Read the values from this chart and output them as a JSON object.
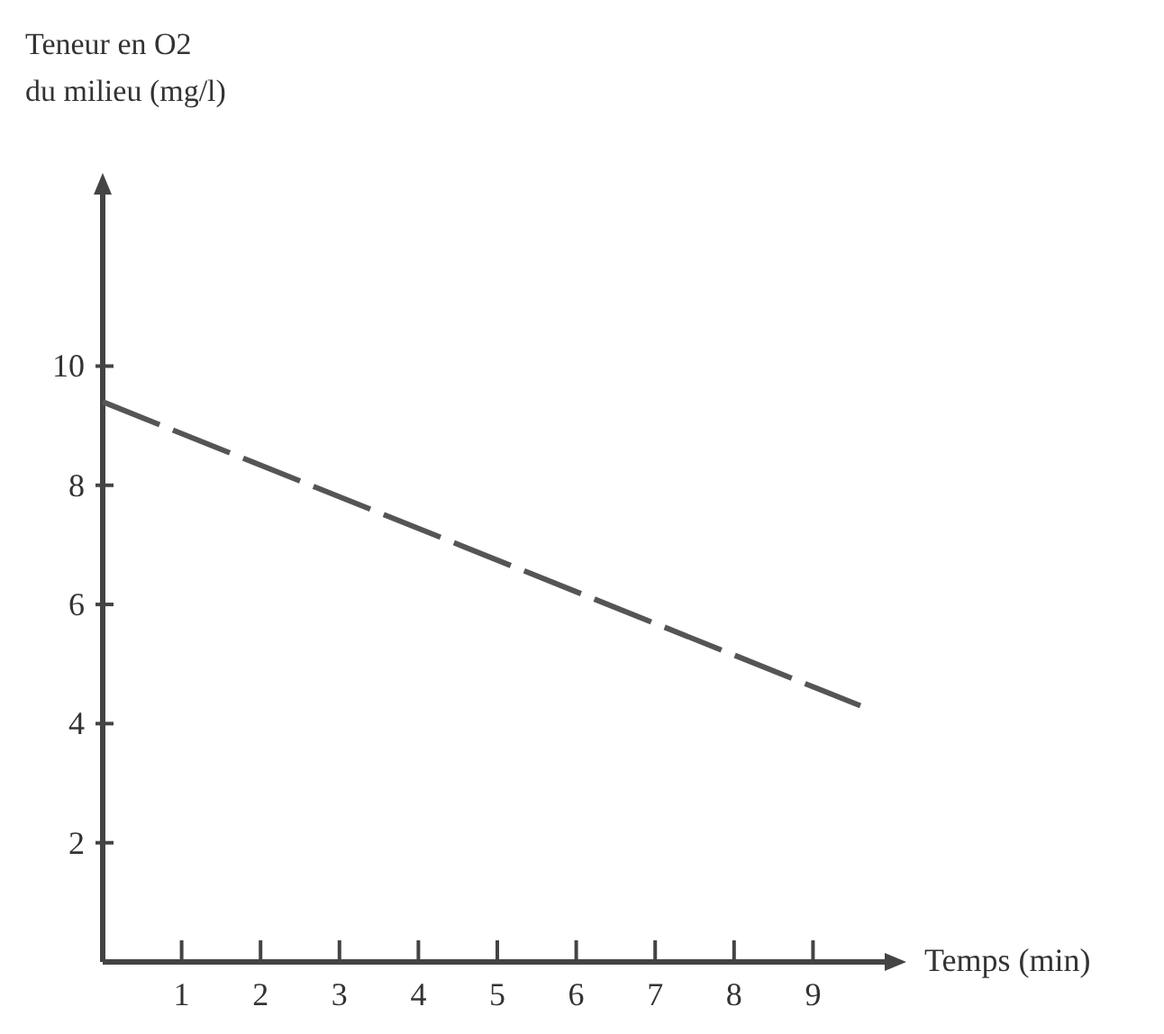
{
  "chart_data": {
    "type": "line",
    "ylabel": "Teneur en O2\ndu milieu (mg/l)",
    "xlabel": "Temps (min)",
    "x": [
      0,
      9.6
    ],
    "series": [
      {
        "color": "#555555",
        "values": [
          9.4,
          4.3
        ]
      }
    ],
    "xlim": [
      0,
      10
    ],
    "xticks": [
      1,
      2,
      3,
      4,
      5,
      6,
      7,
      8,
      9
    ],
    "ylim": [
      0,
      13
    ],
    "yticks": [
      2,
      4,
      6,
      8,
      10
    ],
    "line_style": "dashed",
    "marker": "none",
    "grid": false
  }
}
